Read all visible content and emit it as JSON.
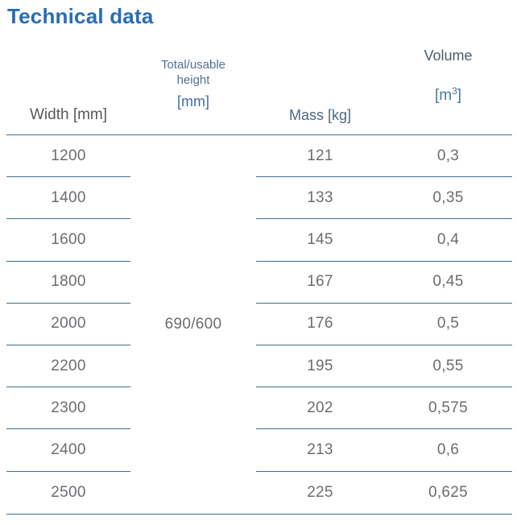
{
  "title": "Technical data",
  "colors": {
    "title": "#2a6cb4",
    "divider": "#3f6e8c",
    "header_gray": "#56585b",
    "header_slate": "#51708f",
    "header_blue": "#3d6fa5",
    "mass_header": "#4c687e",
    "volume_header": "#4e5e6d",
    "volume_unit": "#447aa0",
    "data_text": "#6a6d70",
    "background": "#ffffff"
  },
  "table": {
    "headers": {
      "width": "Width [mm]",
      "height_line1": "Total/usable",
      "height_line2": "height",
      "height_unit": "[mm]",
      "mass": "Mass [kg]",
      "volume": "Volume",
      "volume_unit_open": "[m",
      "volume_unit_sup": "3",
      "volume_unit_close": "]"
    },
    "height_value": "690/600",
    "rows": [
      {
        "width": "1200",
        "mass": "121",
        "volume": "0,3"
      },
      {
        "width": "1400",
        "mass": "133",
        "volume": "0,35"
      },
      {
        "width": "1600",
        "mass": "145",
        "volume": "0,4"
      },
      {
        "width": "1800",
        "mass": "167",
        "volume": "0,45"
      },
      {
        "width": "2000",
        "mass": "176",
        "volume": "0,5"
      },
      {
        "width": "2200",
        "mass": "195",
        "volume": "0,55"
      },
      {
        "width": "2300",
        "mass": "202",
        "volume": "0,575"
      },
      {
        "width": "2400",
        "mass": "213",
        "volume": "0,6"
      },
      {
        "width": "2500",
        "mass": "225",
        "volume": "0,625"
      }
    ]
  },
  "chart_data": {
    "type": "table",
    "title": "Technical data",
    "columns": [
      "Width [mm]",
      "Total/usable height [mm]",
      "Mass [kg]",
      "Volume [m3]"
    ],
    "rows": [
      [
        "1200",
        "690/600",
        "121",
        "0,3"
      ],
      [
        "1400",
        "690/600",
        "133",
        "0,35"
      ],
      [
        "1600",
        "690/600",
        "145",
        "0,4"
      ],
      [
        "1800",
        "690/600",
        "167",
        "0,45"
      ],
      [
        "2000",
        "690/600",
        "176",
        "0,5"
      ],
      [
        "2200",
        "690/600",
        "195",
        "0,55"
      ],
      [
        "2300",
        "690/600",
        "202",
        "0,575"
      ],
      [
        "2400",
        "690/600",
        "213",
        "0,6"
      ],
      [
        "2500",
        "690/600",
        "225",
        "0,625"
      ]
    ]
  }
}
